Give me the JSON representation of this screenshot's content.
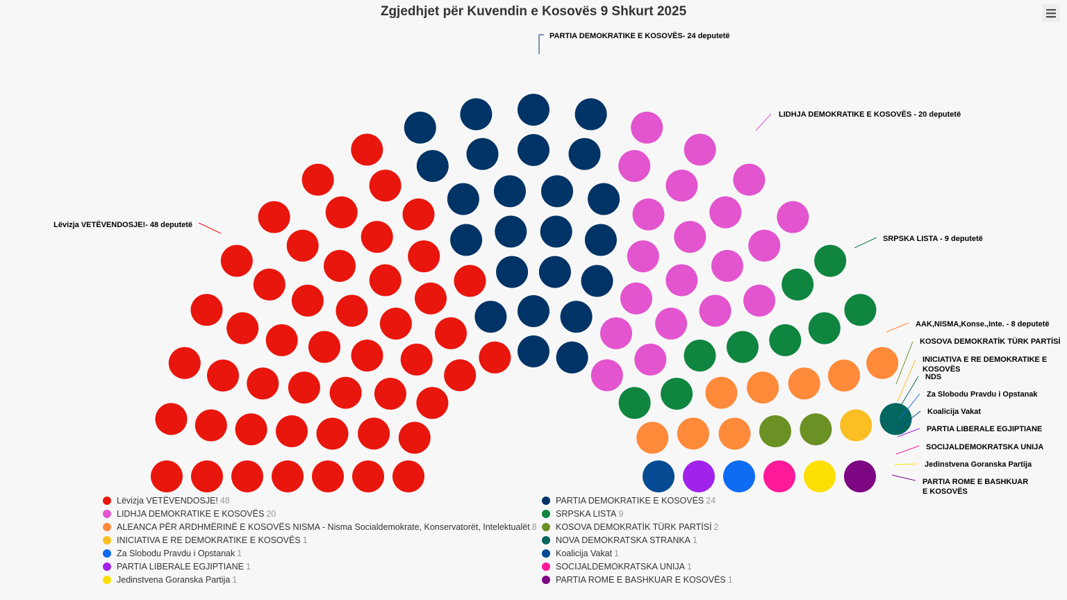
{
  "title": "Zgjedhjet për Kuvendin e Kosovës 9 Shkurt 2025",
  "menu_icon": "hamburger-menu-icon",
  "chart_data": {
    "type": "parliament",
    "total_seats": 120,
    "series": [
      {
        "name": "Lëvizja VETËVENDOSJE!",
        "seats": 48,
        "color": "#e8160c",
        "label": "Lëvizja VETËVENDOSJE!- 48 deputetë"
      },
      {
        "name": "PARTIA DEMOKRATIKE E KOSOVËS",
        "seats": 24,
        "color": "#003366",
        "label": "PARTIA DEMOKRATIKE E KOSOVËS- 24 deputetë"
      },
      {
        "name": "LIDHJA DEMOKRATIKE E KOSOVËS",
        "seats": 20,
        "color": "#e255ce",
        "label": "LIDHJA DEMOKRATIKE E KOSOVËS - 20 deputetë"
      },
      {
        "name": "SRPSKA LISTA",
        "seats": 9,
        "color": "#0f8540",
        "label": "SRPSKA LISTA - 9 deputetë"
      },
      {
        "name": "ALEANCA PËR ARDHMËRINË E KOSOVËS NISMA - Nisma Socialdemokrate, Konservatorët, Intelektualët",
        "seats": 8,
        "color": "#ff8a3a",
        "label": "AAK,NISMA,Konse.,Inte. - 8 deputetë"
      },
      {
        "name": "KOSOVA DEMOKRATİK TÜRK PARTİSİ",
        "seats": 2,
        "color": "#6b9023",
        "label": "KOSOVA DEMOKRATİK TÜRK PARTİSİ"
      },
      {
        "name": "INICIATIVA E RE DEMOKRATIKE E KOSOVËS",
        "seats": 1,
        "color": "#fbbf24",
        "label": "INICIATIVA E RE DEMOKRATIKE E KOSOVËS"
      },
      {
        "name": "NOVA DEMOKRATSKA STRANKA",
        "seats": 1,
        "color": "#03675f",
        "label": "NDS"
      },
      {
        "name": "Za Slobodu Pravdu i Opstanak",
        "seats": 1,
        "color": "#0e6cf2",
        "label": "Za Slobodu Pravdu i Opstanak"
      },
      {
        "name": "Koalicija Vakat",
        "seats": 1,
        "color": "#044b94",
        "label": "Koalicija Vakat"
      },
      {
        "name": "PARTIA LIBERALE EGJIPTIANE",
        "seats": 1,
        "color": "#a123eb",
        "label": "PARTIA LIBERALE EGJIPTIANE"
      },
      {
        "name": "SOCIJALDEMOKRATSKA UNIJA",
        "seats": 1,
        "color": "#ff1a9a",
        "label": "SOCIJALDEMOKRATSKA UNIJA"
      },
      {
        "name": "Jedinstvena Goranska Partija",
        "seats": 1,
        "color": "#fde003",
        "label": "Jedinstvena Goranska Partija"
      },
      {
        "name": "PARTIA ROME E BASHKUAR E KOSOVËS",
        "seats": 1,
        "color": "#7d0682",
        "label": "PARTIA ROME E BASHKUAR E KOSOVËS"
      }
    ],
    "legend_placement": "bottom",
    "legend_order": [
      0,
      1,
      2,
      3,
      4,
      5,
      6,
      7,
      8,
      9,
      10,
      11,
      12,
      13
    ]
  }
}
